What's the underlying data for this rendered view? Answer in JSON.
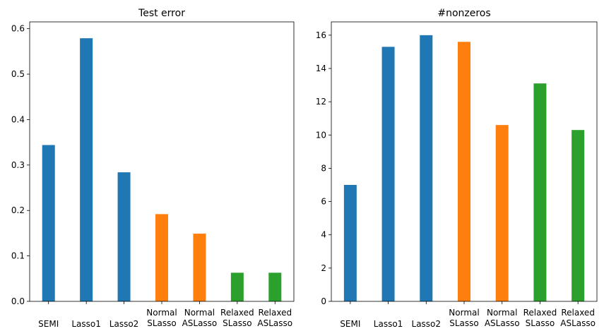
{
  "colors": {
    "blue": "#1f77b4",
    "orange": "#ff7f0e",
    "green": "#2ca02c"
  },
  "chart_data": [
    {
      "type": "bar",
      "title": "Test error",
      "xlabel": "",
      "ylabel": "",
      "categories": [
        [
          "SEMI"
        ],
        [
          "Lasso1"
        ],
        [
          "Lasso2"
        ],
        [
          "Normal",
          "SLasso"
        ],
        [
          "Normal",
          "ASLasso"
        ],
        [
          "Relaxed",
          "SLasso"
        ],
        [
          "Relaxed",
          "ASLasso"
        ]
      ],
      "values": [
        0.344,
        0.579,
        0.284,
        0.192,
        0.149,
        0.063,
        0.063
      ],
      "bar_colors": [
        "blue",
        "blue",
        "blue",
        "orange",
        "orange",
        "green",
        "green"
      ],
      "ylim": [
        0,
        0.615
      ],
      "yticks": [
        0.0,
        0.1,
        0.2,
        0.3,
        0.4,
        0.5,
        0.6
      ],
      "ytick_labels": [
        "0.0",
        "0.1",
        "0.2",
        "0.3",
        "0.4",
        "0.5",
        "0.6"
      ],
      "grid": false
    },
    {
      "type": "bar",
      "title": "#nonzeros",
      "xlabel": "",
      "ylabel": "",
      "categories": [
        [
          "SEMI"
        ],
        [
          "Lasso1"
        ],
        [
          "Lasso2"
        ],
        [
          "Normal",
          "SLasso"
        ],
        [
          "Normal",
          "ASLasso"
        ],
        [
          "Relaxed",
          "SLasso"
        ],
        [
          "Relaxed",
          "ASLasso"
        ]
      ],
      "values": [
        7.0,
        15.3,
        16.0,
        15.6,
        10.6,
        13.1,
        10.3
      ],
      "bar_colors": [
        "blue",
        "blue",
        "blue",
        "orange",
        "orange",
        "green",
        "green"
      ],
      "ylim": [
        0,
        16.8
      ],
      "yticks": [
        0,
        2,
        4,
        6,
        8,
        10,
        12,
        14,
        16
      ],
      "ytick_labels": [
        "0",
        "2",
        "4",
        "6",
        "8",
        "10",
        "12",
        "14",
        "16"
      ],
      "grid": false
    }
  ]
}
